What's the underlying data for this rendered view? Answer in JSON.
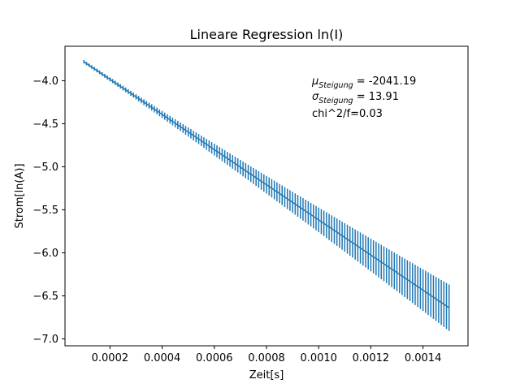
{
  "chart_data": {
    "type": "line",
    "title": "Lineare Regression ln(I)",
    "xlabel": "Zeit[s]",
    "ylabel": "Strom[ln(A)]",
    "xlim": [
      2.75e-05,
      0.0015725
    ],
    "ylim": [
      -7.08,
      -3.6
    ],
    "xticks": [
      0.0002,
      0.0004,
      0.0006,
      0.0008,
      0.001,
      0.0012,
      0.0014
    ],
    "xtick_labels": [
      "0.0002",
      "0.0004",
      "0.0006",
      "0.0008",
      "0.0010",
      "0.0012",
      "0.0014"
    ],
    "yticks": [
      -4.0,
      -4.5,
      -5.0,
      -5.5,
      -6.0,
      -6.5,
      -7.0
    ],
    "ytick_labels": [
      "−4.0",
      "−4.5",
      "−5.0",
      "−5.5",
      "−6.0",
      "−6.5",
      "−7.0"
    ],
    "grid": false,
    "series": [
      {
        "color": "#1f77b4",
        "x_start": 0.0001,
        "x_end": 0.0015,
        "n_points": 141,
        "slope": -2041.19,
        "intercept": -3.576,
        "errorbar_half_at_start": 0.02,
        "errorbar_half_at_end": 0.27
      }
    ],
    "annotations": [
      {
        "symbol": "μ",
        "subscript": "Steigung",
        "text": " = -2041.19"
      },
      {
        "symbol": "σ",
        "subscript": "Steigung",
        "text": " = 13.91"
      },
      {
        "text": "chi^2/f=0.03"
      }
    ]
  }
}
